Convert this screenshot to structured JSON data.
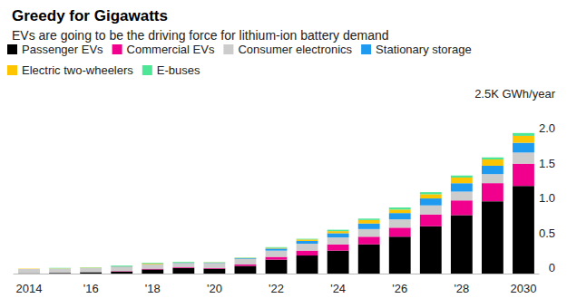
{
  "chart_data": {
    "type": "bar",
    "title": "Greedy for Gigawatts",
    "subtitle": "EVs are going to be the driving force for lithium-ion battery demand",
    "categories": [
      "2014",
      null,
      "'16",
      null,
      "'18",
      null,
      "'20",
      null,
      "'22",
      null,
      "'24",
      null,
      "'26",
      null,
      "'28",
      null,
      "2030"
    ],
    "series": [
      {
        "name": "Passenger EVs",
        "color": "#000000",
        "values": [
          0.005,
          0.01,
          0.02,
          0.03,
          0.06,
          0.08,
          0.07,
          0.11,
          0.2,
          0.26,
          0.33,
          0.42,
          0.53,
          0.68,
          0.84,
          1.04,
          1.26
        ]
      },
      {
        "name": "Commercial EVs",
        "color": "#f0008c",
        "values": [
          0,
          0,
          0,
          0.005,
          0.01,
          0.01,
          0.01,
          0.02,
          0.04,
          0.07,
          0.09,
          0.11,
          0.13,
          0.17,
          0.21,
          0.26,
          0.32
        ]
      },
      {
        "name": "Consumer electronics",
        "color": "#cccccc",
        "values": [
          0.06,
          0.06,
          0.06,
          0.06,
          0.06,
          0.06,
          0.07,
          0.08,
          0.09,
          0.1,
          0.1,
          0.11,
          0.12,
          0.13,
          0.13,
          0.13,
          0.16
        ]
      },
      {
        "name": "Stationary storage",
        "color": "#1e9bf0",
        "values": [
          0,
          0,
          0,
          0.005,
          0.005,
          0.005,
          0.005,
          0.01,
          0.03,
          0.04,
          0.06,
          0.08,
          0.09,
          0.1,
          0.12,
          0.12,
          0.14
        ]
      },
      {
        "name": "Electric two-wheelers",
        "color": "#fcc500",
        "values": [
          0.005,
          0.005,
          0.005,
          0.005,
          0.01,
          0.005,
          0.005,
          0.005,
          0.01,
          0.02,
          0.03,
          0.05,
          0.05,
          0.06,
          0.08,
          0.09,
          0.1
        ]
      },
      {
        "name": "E-buses",
        "color": "#4de596",
        "values": [
          0,
          0.005,
          0.005,
          0.01,
          0.01,
          0.01,
          0.005,
          0.005,
          0.01,
          0.01,
          0.02,
          0.02,
          0.03,
          0.03,
          0.03,
          0.03,
          0.04
        ]
      }
    ],
    "ylim": [
      0,
      2.5
    ],
    "yticks": [
      0,
      0.5,
      {
        "value": 1,
        "label": "1.0"
      },
      1.5,
      {
        "value": 2,
        "label": "2.0"
      },
      {
        "value": 2.5,
        "label": "2.5K GWh/year"
      }
    ],
    "stacked": true,
    "grid": false,
    "legend": "top"
  }
}
